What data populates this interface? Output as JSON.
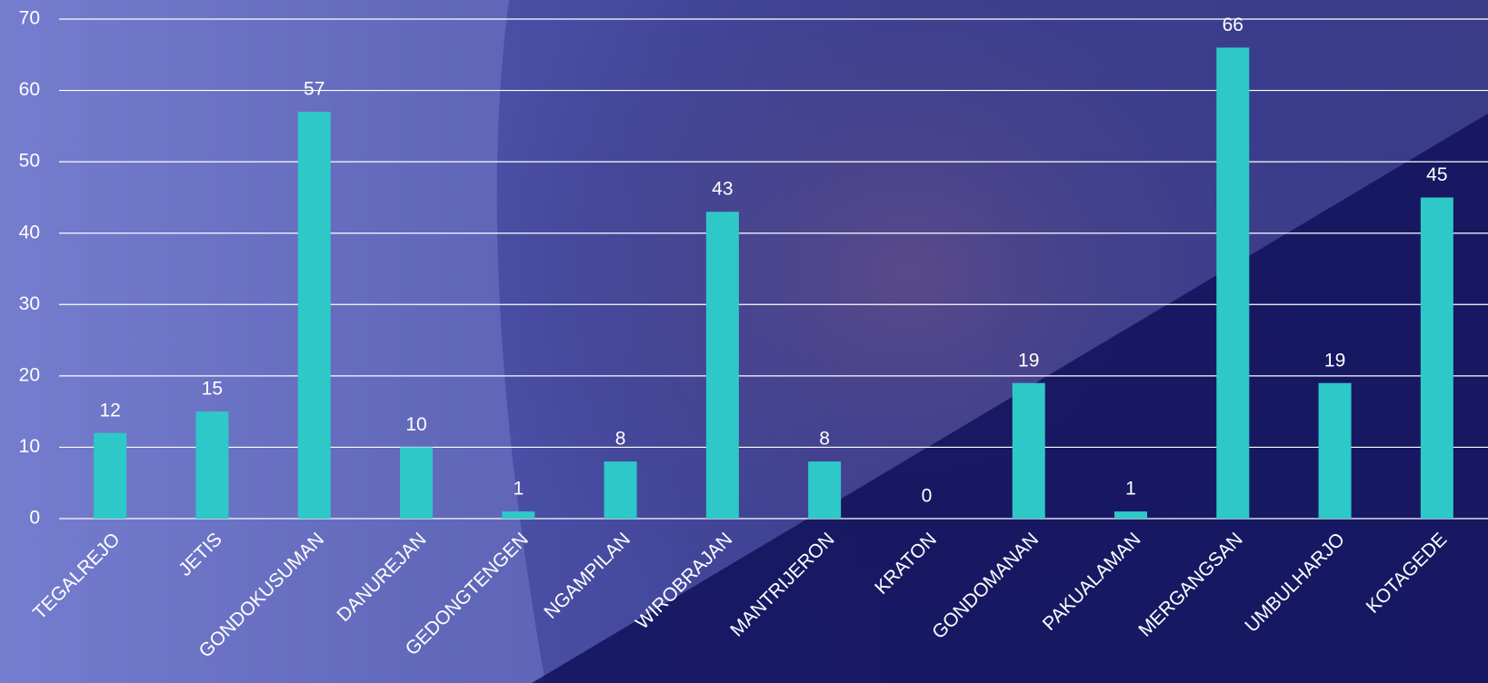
{
  "chart_data": {
    "type": "bar",
    "categories": [
      "TEGALREJO",
      "JETIS",
      "GONDOKUSUMAN",
      "DANUREJAN",
      "GEDONGTENGEN",
      "NGAMPILAN",
      "WIROBRAJAN",
      "MANTRIJERON",
      "KRATON",
      "GONDOMANAN",
      "PAKUALAMAN",
      "MERGANGSAN",
      "UMBULHARJO",
      "KOTAGEDE"
    ],
    "values": [
      12,
      15,
      57,
      10,
      1,
      8,
      43,
      8,
      0,
      19,
      1,
      66,
      19,
      45
    ],
    "color": "#2ec8c8",
    "ylim": [
      0,
      70
    ],
    "yticks": [
      0,
      10,
      20,
      30,
      40,
      50,
      60,
      70
    ],
    "grid": true
  }
}
